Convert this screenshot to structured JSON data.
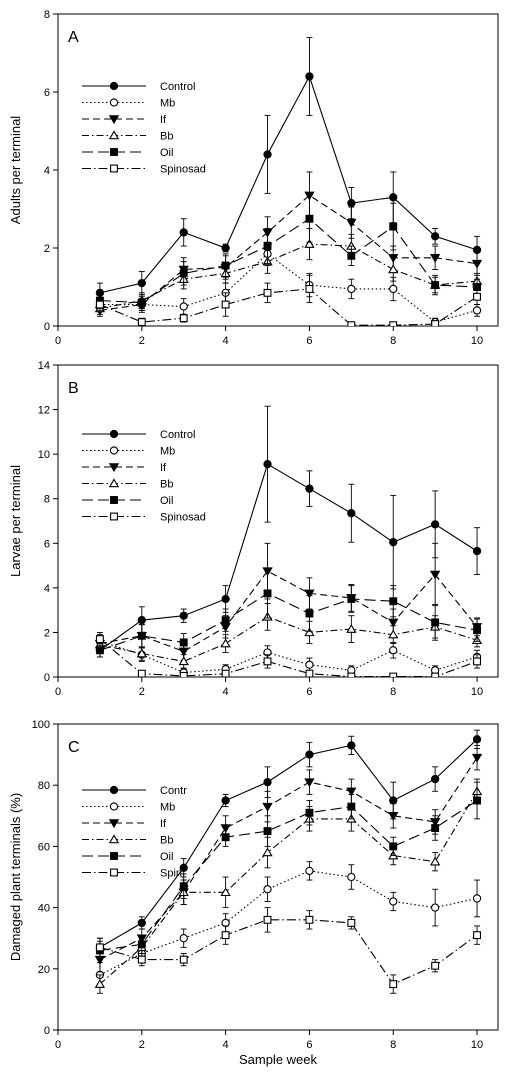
{
  "figure": {
    "xlabel": "Sample week"
  },
  "chart_data": [
    {
      "type": "line",
      "panel_label": "A",
      "ylabel": "Adults per terminal",
      "xlabel": "",
      "xlim": [
        0,
        10.5
      ],
      "ylim": [
        0,
        8
      ],
      "xticks": [
        0,
        2,
        4,
        6,
        8,
        10
      ],
      "yticks": [
        0,
        2,
        4,
        6,
        8
      ],
      "legend_position": "top-left",
      "x": [
        1,
        2,
        3,
        4,
        5,
        6,
        7,
        8,
        9,
        10
      ],
      "series": [
        {
          "name": "Control",
          "style": "control",
          "values": [
            0.85,
            1.1,
            2.4,
            2.0,
            4.4,
            6.4,
            3.15,
            3.3,
            2.3,
            1.95
          ],
          "errors": [
            0.25,
            0.3,
            0.35,
            0.1,
            1.0,
            1.0,
            0.4,
            0.65,
            0.2,
            0.35
          ]
        },
        {
          "name": "Mb",
          "style": "mb",
          "values": [
            0.55,
            0.55,
            0.5,
            0.85,
            1.85,
            1.05,
            0.95,
            0.95,
            0.1,
            0.4
          ],
          "errors": [
            0.15,
            0.15,
            0.2,
            0.25,
            0.3,
            0.3,
            0.25,
            0.3,
            0.1,
            0.15
          ]
        },
        {
          "name": "If",
          "style": "if",
          "values": [
            0.4,
            0.55,
            1.45,
            1.5,
            2.4,
            3.35,
            2.65,
            1.75,
            1.75,
            1.6
          ],
          "errors": [
            0.15,
            0.2,
            0.3,
            0.3,
            0.4,
            0.6,
            0.4,
            0.3,
            0.3,
            0.3
          ]
        },
        {
          "name": "Bb",
          "style": "bb",
          "values": [
            0.45,
            0.65,
            1.2,
            1.35,
            1.65,
            2.1,
            2.05,
            1.45,
            1.05,
            1.15
          ],
          "errors": [
            0.15,
            0.2,
            0.25,
            0.25,
            0.3,
            0.4,
            0.3,
            0.3,
            0.2,
            0.2
          ]
        },
        {
          "name": "Oil",
          "style": "oil",
          "values": [
            0.65,
            0.6,
            1.35,
            1.55,
            2.05,
            2.75,
            1.8,
            2.55,
            1.05,
            1.0
          ],
          "errors": [
            0.2,
            0.2,
            0.3,
            0.3,
            0.45,
            0.6,
            0.25,
            0.6,
            0.25,
            0.2
          ]
        },
        {
          "name": "Spinosad",
          "style": "spinosad",
          "values": [
            0.55,
            0.1,
            0.2,
            0.55,
            0.85,
            0.95,
            0.02,
            0.02,
            0.05,
            0.75
          ],
          "errors": [
            0.15,
            0.1,
            0.1,
            0.3,
            0.25,
            0.35,
            0.02,
            0.02,
            0.05,
            0.2
          ]
        }
      ]
    },
    {
      "type": "line",
      "panel_label": "B",
      "ylabel": "Larvae per terminal",
      "xlabel": "",
      "xlim": [
        0,
        10.5
      ],
      "ylim": [
        0,
        14
      ],
      "xticks": [
        0,
        2,
        4,
        6,
        8,
        10
      ],
      "yticks": [
        0,
        2,
        4,
        6,
        8,
        10,
        12,
        14
      ],
      "legend_position": "top-left",
      "x": [
        1,
        2,
        3,
        4,
        5,
        6,
        7,
        8,
        9,
        10
      ],
      "series": [
        {
          "name": "Control",
          "style": "control",
          "values": [
            1.2,
            2.55,
            2.75,
            3.5,
            9.55,
            8.45,
            7.35,
            6.05,
            6.85,
            5.65
          ],
          "errors": [
            0.3,
            0.6,
            0.3,
            0.6,
            2.6,
            0.8,
            1.3,
            2.1,
            1.5,
            1.05
          ]
        },
        {
          "name": "Mb",
          "style": "mb",
          "values": [
            1.6,
            1.0,
            0.2,
            0.35,
            1.1,
            0.55,
            0.3,
            1.2,
            0.3,
            0.9
          ],
          "errors": [
            0.3,
            0.3,
            0.15,
            0.2,
            0.3,
            0.3,
            0.2,
            0.35,
            0.2,
            0.3
          ]
        },
        {
          "name": "If",
          "style": "if",
          "values": [
            1.5,
            1.85,
            1.15,
            2.25,
            4.75,
            3.75,
            3.55,
            2.45,
            4.6,
            2.25
          ],
          "errors": [
            0.3,
            0.5,
            0.4,
            0.5,
            1.25,
            0.7,
            0.6,
            0.6,
            1.4,
            0.4
          ]
        },
        {
          "name": "Bb",
          "style": "bb",
          "values": [
            1.45,
            1.05,
            0.7,
            1.5,
            2.7,
            2.0,
            2.15,
            1.9,
            2.25,
            1.65
          ],
          "errors": [
            0.3,
            0.3,
            0.3,
            0.4,
            0.6,
            0.5,
            0.6,
            0.4,
            0.5,
            0.3
          ]
        },
        {
          "name": "Oil",
          "style": "oil",
          "values": [
            1.2,
            1.85,
            1.55,
            2.55,
            3.75,
            2.85,
            3.5,
            3.4,
            2.45,
            2.1
          ],
          "errors": [
            0.3,
            0.5,
            0.4,
            0.5,
            1.1,
            0.8,
            0.6,
            0.7,
            0.8,
            0.5
          ]
        },
        {
          "name": "Spinosad",
          "style": "spinosad",
          "values": [
            1.7,
            0.15,
            0.05,
            0.15,
            0.7,
            0.15,
            0.02,
            0.02,
            0.02,
            0.7
          ],
          "errors": [
            0.3,
            0.1,
            0.05,
            0.1,
            0.3,
            0.1,
            0.02,
            0.02,
            0.02,
            0.3
          ]
        }
      ]
    },
    {
      "type": "line",
      "panel_label": "C",
      "ylabel": "Damaged plant terminals (%)",
      "xlabel": "Sample week",
      "xlim": [
        0,
        10.5
      ],
      "ylim": [
        0,
        100
      ],
      "xticks": [
        0,
        2,
        4,
        6,
        8,
        10
      ],
      "yticks": [
        0,
        20,
        40,
        60,
        80,
        100
      ],
      "legend_position": "top-left",
      "x": [
        1,
        2,
        3,
        4,
        5,
        6,
        7,
        8,
        9,
        10
      ],
      "series": [
        {
          "name": "Contr",
          "style": "control",
          "values": [
            27,
            35,
            53,
            75,
            81,
            90,
            93,
            75,
            82,
            95
          ],
          "errors": [
            3,
            2,
            3,
            2,
            5,
            4,
            3,
            6,
            4,
            3
          ]
        },
        {
          "name": "Mb",
          "style": "mb",
          "values": [
            18,
            25,
            30,
            35,
            46,
            52,
            50,
            42,
            40,
            43
          ],
          "errors": [
            4,
            2,
            3,
            3,
            4,
            3,
            4,
            3,
            6,
            6
          ]
        },
        {
          "name": "If",
          "style": "if",
          "values": [
            23,
            30,
            45,
            66,
            73,
            81,
            78,
            70,
            68,
            89
          ],
          "errors": [
            4,
            3,
            4,
            4,
            5,
            4,
            4,
            4,
            4,
            4
          ]
        },
        {
          "name": "Bb",
          "style": "bb",
          "values": [
            15,
            27,
            45,
            45,
            58,
            69,
            69,
            57,
            55,
            78
          ],
          "errors": [
            3,
            3,
            4,
            5,
            5,
            4,
            4,
            3,
            3,
            4
          ]
        },
        {
          "name": "Oil",
          "style": "oil",
          "values": [
            26,
            28,
            47,
            63,
            65,
            71,
            73,
            60,
            66,
            75
          ],
          "errors": [
            3,
            3,
            4,
            3,
            5,
            4,
            4,
            3,
            4,
            6
          ]
        },
        {
          "name": "Spin",
          "style": "spinosad",
          "values": [
            27,
            23,
            23,
            31,
            36,
            36,
            35,
            15,
            21,
            31
          ],
          "errors": [
            3,
            2,
            2,
            3,
            4,
            3,
            2,
            3,
            2,
            3
          ]
        }
      ]
    }
  ]
}
